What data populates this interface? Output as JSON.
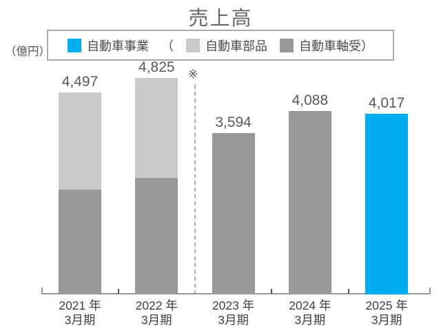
{
  "title": "売上高",
  "unit_label": "（億円）",
  "note_mark": "※",
  "legend": {
    "series1": "自動車事業",
    "open_paren": "（",
    "series2": "自動車部品",
    "series3": "自動車軸受）"
  },
  "colors": {
    "auto_business_blue": "#00AEEF",
    "auto_parts_light_gray": "#C9C9C9",
    "auto_bearings_dark_gray": "#999999",
    "axis_gray": "#999999",
    "text_gray": "#595959"
  },
  "chart_data": {
    "type": "bar",
    "stacked": true,
    "title": "売上高",
    "ylabel": "（億円）",
    "legend_position": "top",
    "grid": false,
    "ylim": [
      0,
      5000
    ],
    "note": "※ dashed divider between 2022年3月期 and 2023年3月期",
    "categories": [
      "2021 年\n3月期",
      "2022 年\n3月期",
      "2023 年\n3月期",
      "2024 年\n3月期",
      "2025 年\n3月期"
    ],
    "series": [
      {
        "name": "自動車事業",
        "color_key": "auto_business_blue",
        "values": [
          null,
          null,
          null,
          null,
          4017
        ]
      },
      {
        "name": "自動車部品",
        "color_key": "auto_parts_light_gray",
        "values": [
          2162,
          2230,
          null,
          null,
          null
        ]
      },
      {
        "name": "自動車軸受",
        "color_key": "auto_bearings_dark_gray",
        "values": [
          2335,
          2596,
          3594,
          4088,
          null
        ]
      }
    ],
    "totals": [
      4497,
      4825,
      3594,
      4088,
      4017
    ],
    "bars": [
      {
        "category": "2021 年\n3月期",
        "total_label": "4,497",
        "segments": [
          {
            "series": "自動車軸受",
            "value": 2335,
            "label": "2,335",
            "color_key": "auto_bearings_dark_gray"
          },
          {
            "series": "自動車部品",
            "value": 2162,
            "label": "2,162",
            "color_key": "auto_parts_light_gray"
          }
        ]
      },
      {
        "category": "2022 年\n3月期",
        "total_label": "4,825",
        "segments": [
          {
            "series": "自動車軸受",
            "value": 2596,
            "label": "2,596",
            "color_key": "auto_bearings_dark_gray"
          },
          {
            "series": "自動車部品",
            "value": 2230,
            "label": "2,230",
            "color_key": "auto_parts_light_gray"
          }
        ]
      },
      {
        "category": "2023 年\n3月期",
        "total_label": "3,594",
        "segments": [
          {
            "series": "自動車軸受",
            "value": 3594,
            "label": null,
            "color_key": "auto_bearings_dark_gray"
          }
        ]
      },
      {
        "category": "2024 年\n3月期",
        "total_label": "4,088",
        "segments": [
          {
            "series": "自動車軸受",
            "value": 4088,
            "label": null,
            "color_key": "auto_bearings_dark_gray"
          }
        ]
      },
      {
        "category": "2025 年\n3月期",
        "total_label": "4,017",
        "segments": [
          {
            "series": "自動車事業",
            "value": 4017,
            "label": null,
            "color_key": "auto_business_blue"
          }
        ]
      }
    ]
  }
}
